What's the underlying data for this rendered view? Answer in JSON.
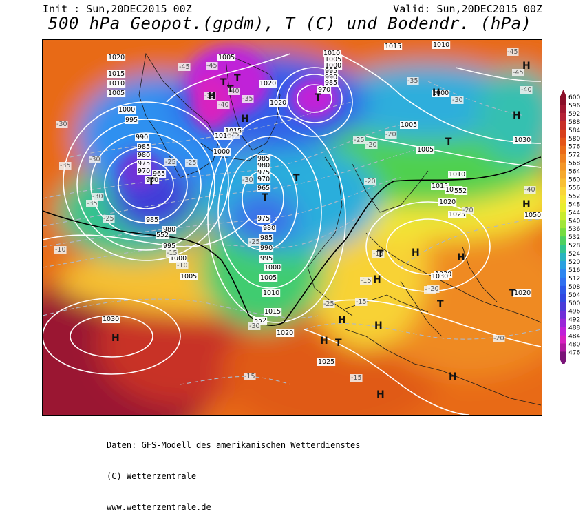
{
  "header": {
    "init": "Init : Sun,20DEC2015 00Z",
    "valid": "Valid: Sun,20DEC2015 00Z",
    "title": "500 hPa Geopot.(gpdm), T (C) und Bodendr. (hPa)"
  },
  "credit": {
    "line1": "Daten: GFS-Modell des amerikanischen Wetterdienstes",
    "line2": "(C) Wetterzentrale",
    "line3": "www.wetterzentrale.de"
  },
  "legend": {
    "values": [
      "600",
      "596",
      "592",
      "588",
      "584",
      "580",
      "576",
      "572",
      "568",
      "564",
      "560",
      "556",
      "552",
      "548",
      "544",
      "540",
      "536",
      "532",
      "528",
      "524",
      "520",
      "516",
      "512",
      "508",
      "504",
      "500",
      "496",
      "492",
      "488",
      "484",
      "480",
      "476"
    ],
    "colors": [
      "#8a0f28",
      "#a01830",
      "#b52235",
      "#c83028",
      "#d8401c",
      "#e45418",
      "#ea6a18",
      "#ef8020",
      "#f39628",
      "#f6aa2e",
      "#f8c034",
      "#fad63a",
      "#f6e636",
      "#e8ee30",
      "#c8ec30",
      "#a0e638",
      "#74dc40",
      "#4cd060",
      "#30c490",
      "#28b4c0",
      "#2aa0e0",
      "#2e86f0",
      "#3070f0",
      "#2c58e8",
      "#3048e0",
      "#4a3cd8",
      "#7030d8",
      "#9a28d8",
      "#c020d8",
      "#d820c0",
      "#b01aa0",
      "#7a1478"
    ]
  },
  "map_labels": {
    "isobars": [
      {
        "t": "1020"
      },
      {
        "t": "1015"
      },
      {
        "t": "1010"
      },
      {
        "t": "1005"
      },
      {
        "t": "1000"
      },
      {
        "t": "995"
      },
      {
        "t": "990"
      },
      {
        "t": "985"
      },
      {
        "t": "980"
      },
      {
        "t": "975"
      },
      {
        "t": "970"
      },
      {
        "t": "965"
      },
      {
        "t": "960"
      },
      {
        "t": "1005"
      },
      {
        "t": "1020"
      },
      {
        "t": "1020"
      },
      {
        "t": "1015"
      },
      {
        "t": "1010"
      },
      {
        "t": "1000"
      },
      {
        "t": "1010"
      },
      {
        "t": "1005"
      },
      {
        "t": "1000"
      },
      {
        "t": "995"
      },
      {
        "t": "990"
      },
      {
        "t": "985"
      },
      {
        "t": "970"
      },
      {
        "t": "1015"
      },
      {
        "t": "1010"
      },
      {
        "t": "1015"
      },
      {
        "t": "1000"
      },
      {
        "t": "1030"
      },
      {
        "t": "1005"
      },
      {
        "t": "1005"
      },
      {
        "t": "1010"
      },
      {
        "t": "1015"
      },
      {
        "t": "1020"
      },
      {
        "t": "1025"
      },
      {
        "t": "1030"
      },
      {
        "t": "985"
      },
      {
        "t": "980"
      },
      {
        "t": "975"
      },
      {
        "t": "970"
      },
      {
        "t": "965"
      },
      {
        "t": "975"
      },
      {
        "t": "980"
      },
      {
        "t": "985"
      },
      {
        "t": "990"
      },
      {
        "t": "995"
      },
      {
        "t": "1000"
      },
      {
        "t": "1005"
      },
      {
        "t": "1010"
      },
      {
        "t": "1015"
      },
      {
        "t": "1020"
      },
      {
        "t": "1025"
      },
      {
        "t": "985"
      },
      {
        "t": "980"
      },
      {
        "t": "995"
      },
      {
        "t": "1000"
      },
      {
        "t": "1005"
      },
      {
        "t": "1030"
      },
      {
        "t": "1030"
      },
      {
        "t": "1020"
      },
      {
        "t": "1050"
      },
      {
        "t": "552"
      },
      {
        "t": "552"
      },
      {
        "t": "552"
      }
    ],
    "temps": [
      {
        "t": "-45"
      },
      {
        "t": "-45"
      },
      {
        "t": "-45"
      },
      {
        "t": "-40"
      },
      {
        "t": "-40"
      },
      {
        "t": "-35"
      },
      {
        "t": "-35"
      },
      {
        "t": "-30"
      },
      {
        "t": "-30"
      },
      {
        "t": "-30"
      },
      {
        "t": "-25"
      },
      {
        "t": "-25"
      },
      {
        "t": "-20"
      },
      {
        "t": "-20"
      },
      {
        "t": "-15"
      },
      {
        "t": "-15"
      },
      {
        "t": "-15"
      },
      {
        "t": "-15"
      },
      {
        "t": "-10"
      },
      {
        "t": "-10"
      },
      {
        "t": "-20"
      },
      {
        "t": "-25"
      },
      {
        "t": "-25"
      },
      {
        "t": "-30"
      },
      {
        "t": "-35"
      },
      {
        "t": "-40"
      },
      {
        "t": "-45"
      },
      {
        "t": "-25"
      },
      {
        "t": "-30"
      },
      {
        "t": "-35"
      },
      {
        "t": "-25"
      },
      {
        "t": "-20"
      },
      {
        "t": "-25"
      },
      {
        "t": "-20"
      },
      {
        "t": "-15"
      },
      {
        "t": "-10"
      },
      {
        "t": "-35"
      },
      {
        "t": "-30"
      },
      {
        "t": "-40"
      },
      {
        "t": "-20"
      },
      {
        "t": "-15"
      }
    ],
    "highs": [
      "H",
      "H",
      "H",
      "H",
      "H",
      "H",
      "H",
      "H",
      "H",
      "H",
      "H",
      "H",
      "H",
      "H",
      "H"
    ],
    "lows": [
      "T",
      "T",
      "T",
      "T",
      "T",
      "T",
      "T",
      "T",
      "T",
      "T",
      "T",
      "T"
    ]
  }
}
